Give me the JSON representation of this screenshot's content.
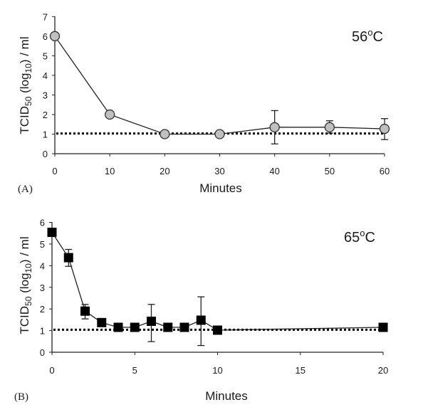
{
  "chart_data": [
    {
      "type": "line",
      "panel_label": "(A)",
      "annotation": {
        "base": "56",
        "sup": "o",
        "unit": "C"
      },
      "xlabel": "Minutes",
      "ylabel": {
        "main": "TCID",
        "sub": "50",
        "mid": " (log",
        "sub2": "10",
        "end": ") / ml"
      },
      "xlim": [
        0,
        60
      ],
      "ylim": [
        0,
        7
      ],
      "xticks": [
        0,
        10,
        20,
        30,
        40,
        50,
        60
      ],
      "yticks": [
        0,
        1,
        2,
        3,
        4,
        5,
        6,
        7
      ],
      "marker": "circle",
      "marker_color": "#c0c0c0",
      "x": [
        0,
        10,
        20,
        30,
        40,
        50,
        60
      ],
      "y": [
        6.0,
        2.0,
        1.0,
        1.0,
        1.35,
        1.35,
        1.27
      ],
      "error_low": [
        null,
        null,
        null,
        null,
        0.5,
        1.05,
        0.72
      ],
      "error_high": [
        null,
        null,
        null,
        null,
        2.2,
        1.68,
        1.79
      ],
      "detection_limit": 1.03,
      "grid": false
    },
    {
      "type": "line",
      "panel_label": "(B)",
      "annotation": {
        "base": "65",
        "sup": "o",
        "unit": "C"
      },
      "xlabel": "Minutes",
      "ylabel": {
        "main": "TCID",
        "sub": "50",
        "mid": " (log",
        "sub2": "10",
        "end": ") / ml"
      },
      "xlim": [
        0,
        20
      ],
      "ylim": [
        0,
        6
      ],
      "xticks": [
        0,
        5,
        10,
        15,
        20
      ],
      "yticks": [
        0,
        1,
        2,
        3,
        4,
        5,
        6
      ],
      "marker": "square",
      "marker_color": "#000000",
      "x": [
        0,
        1,
        2,
        3,
        4,
        5,
        6,
        7,
        8,
        9,
        10,
        20
      ],
      "y": [
        5.54,
        4.37,
        1.9,
        1.37,
        1.15,
        1.15,
        1.43,
        1.15,
        1.15,
        1.48,
        1.02,
        1.15
      ],
      "error_low": [
        null,
        3.97,
        1.54,
        null,
        null,
        null,
        0.49,
        null,
        null,
        0.31,
        null,
        null
      ],
      "error_high": [
        null,
        4.75,
        2.21,
        null,
        null,
        null,
        2.21,
        null,
        null,
        2.56,
        null,
        null
      ],
      "detection_limit": 1.04,
      "grid": false
    }
  ]
}
